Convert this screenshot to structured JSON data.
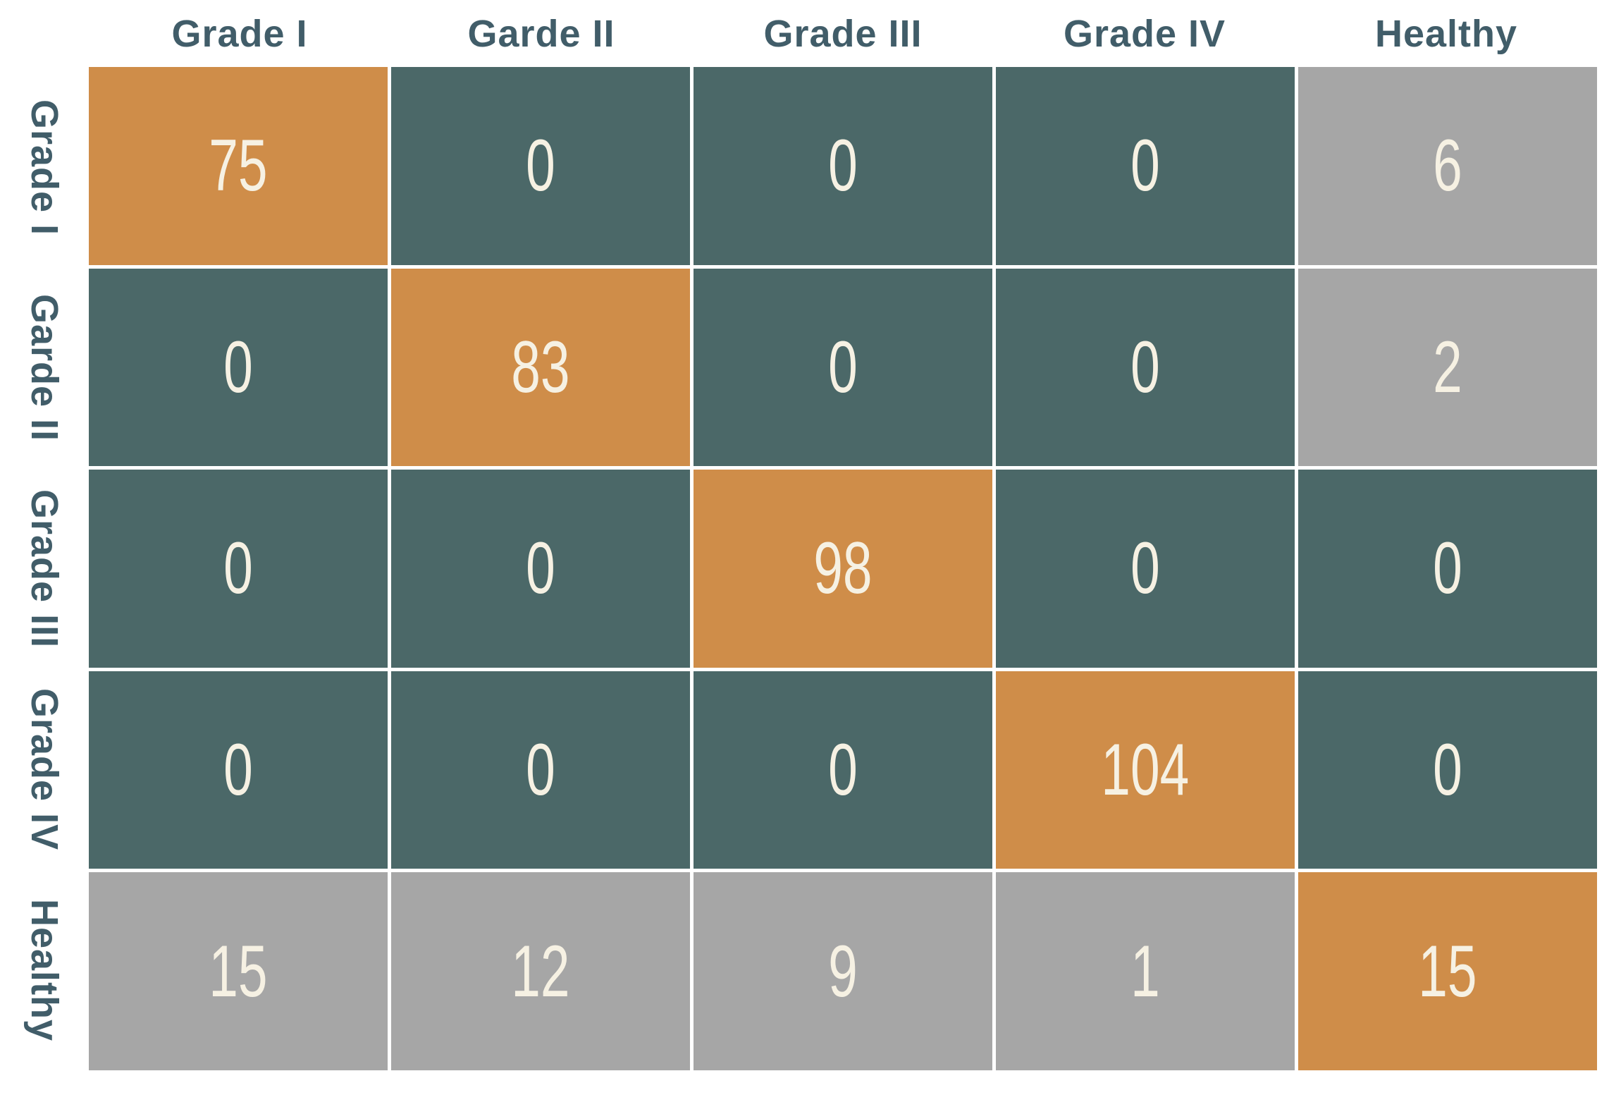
{
  "chart_data": {
    "type": "heatmap",
    "subtype": "confusion-matrix",
    "x_categories": [
      "Grade I",
      "Garde II",
      "Grade III",
      "Grade IV",
      "Healthy"
    ],
    "y_categories": [
      "Grade I",
      "Garde II",
      "Grade III",
      "Grade IV",
      "Healthy"
    ],
    "matrix": [
      [
        75,
        0,
        0,
        0,
        6
      ],
      [
        0,
        83,
        0,
        0,
        2
      ],
      [
        0,
        0,
        98,
        0,
        0
      ],
      [
        0,
        0,
        0,
        104,
        0
      ],
      [
        15,
        12,
        9,
        1,
        15
      ]
    ],
    "layout_hints": {
      "x_axis_side": "top",
      "y_axis_side": "left",
      "y_labels_orientation": "rotated-90-clockwise",
      "grid": "white-gaps-between-cells",
      "legend": "none"
    },
    "colors": {
      "diagonal_cell": "#CF8D49",
      "zero_offdiagonal_cell": "#4B6868",
      "nonzero_offdiagonal_cell": "#A6A6A6",
      "axis_label_text": "#415D69",
      "cell_value_text": "#F6F1E3",
      "background": "#FFFFFF"
    }
  }
}
